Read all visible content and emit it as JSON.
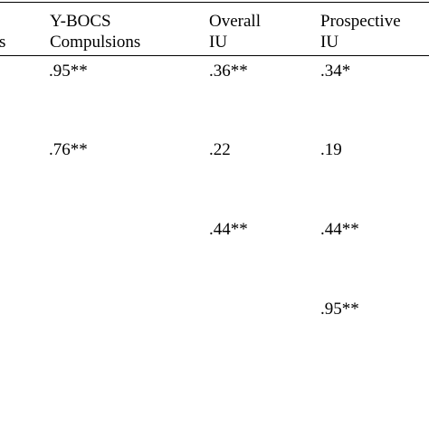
{
  "table": {
    "headers": [
      {
        "line1": "",
        "line2": "s"
      },
      {
        "line1": "Y-BOCS",
        "line2": "Compulsions"
      },
      {
        "line1": "Overall",
        "line2": "IU"
      },
      {
        "line1": "Prospective",
        "line2": "IU"
      }
    ],
    "rows": [
      {
        "col1": ".95**",
        "col2": ".36**",
        "col3": ".34*"
      },
      {
        "col1": ".76**",
        "col2": ".22",
        "col3": ".19"
      },
      {
        "col1": "",
        "col2": ".44**",
        "col3": ".44**"
      },
      {
        "col1": "",
        "col2": "",
        "col3": ".95**"
      }
    ]
  }
}
